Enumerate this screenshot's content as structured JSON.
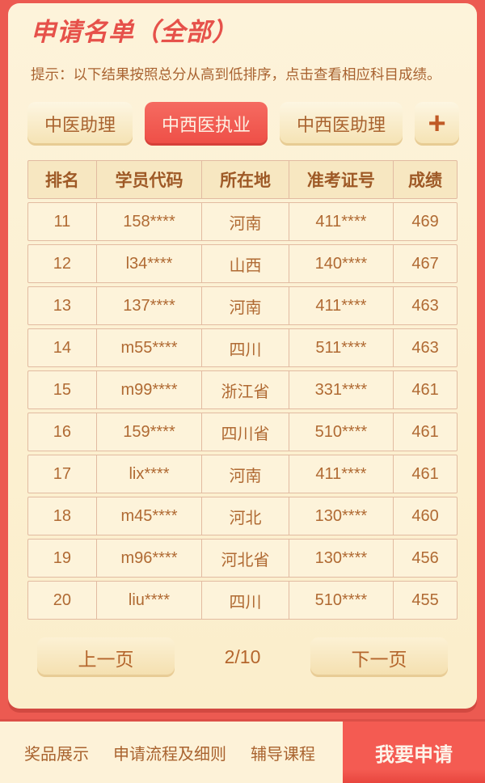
{
  "page": {
    "title": "申请名单（全部）",
    "hint": "提示：以下结果按照总分从高到低排序，点击查看相应科目成绩。"
  },
  "tabs": {
    "items": [
      {
        "label": "中医助理",
        "active": false
      },
      {
        "label": "中西医执业",
        "active": true
      },
      {
        "label": "中西医助理",
        "active": false
      }
    ],
    "add_label": "+"
  },
  "table": {
    "headers": [
      "排名",
      "学员代码",
      "所在地",
      "准考证号",
      "成绩"
    ],
    "rows": [
      [
        "11",
        "158****",
        "河南",
        "411****",
        "469"
      ],
      [
        "12",
        "l34****",
        "山西",
        "140****",
        "467"
      ],
      [
        "13",
        "137****",
        "河南",
        "411****",
        "463"
      ],
      [
        "14",
        "m55****",
        "四川",
        "511****",
        "463"
      ],
      [
        "15",
        "m99****",
        "浙江省",
        "331****",
        "461"
      ],
      [
        "16",
        "159****",
        "四川省",
        "510****",
        "461"
      ],
      [
        "17",
        "lix****",
        "河南",
        "411****",
        "461"
      ],
      [
        "18",
        "m45****",
        "河北",
        "130****",
        "460"
      ],
      [
        "19",
        "m96****",
        "河北省",
        "130****",
        "456"
      ],
      [
        "20",
        "liu****",
        "四川",
        "510****",
        "455"
      ]
    ]
  },
  "pagination": {
    "prev_label": "上一页",
    "current": "2/10",
    "next_label": "下一页"
  },
  "bottom_bar": {
    "links": [
      "奖品展示",
      "申请流程及细则",
      "辅导课程"
    ],
    "apply_label": "我要申请"
  },
  "colors": {
    "page_red": "#ec5a51",
    "active_tab_red": "#f0554c",
    "panel_cream": "#fbeecd",
    "cell_cream": "#fdf3da",
    "header_cream": "#f7e7c1",
    "border_tan": "#e2bba1",
    "text_brown": "#a9632f",
    "title_red": "#e6514a",
    "apply_red": "#f2544b"
  }
}
